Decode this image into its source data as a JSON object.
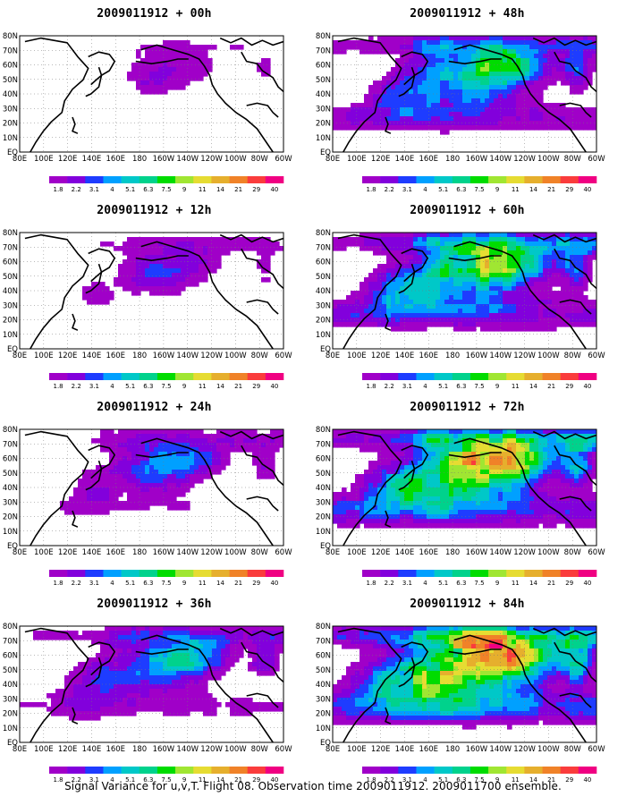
{
  "chart_data": {
    "type": "heatmap",
    "colorbar": {
      "levels": [
        "1.8",
        "2.2",
        "3.1",
        "4",
        "5.1",
        "6.3",
        "7.5",
        "9",
        "11",
        "14",
        "21",
        "29",
        "40"
      ],
      "colors": [
        "#a000c8",
        "#8200dc",
        "#1e3cff",
        "#00a0ff",
        "#00c8c8",
        "#00d28c",
        "#00dc00",
        "#a0e632",
        "#e6dc32",
        "#e6af2d",
        "#f08228",
        "#fa3c3c",
        "#f00082"
      ]
    },
    "x_ticks": [
      "80E",
      "100E",
      "120E",
      "140E",
      "160E",
      "180",
      "160W",
      "140W",
      "120W",
      "100W",
      "80W",
      "60W"
    ],
    "y_ticks": [
      "EQ",
      "10N",
      "20N",
      "30N",
      "40N",
      "50N",
      "60N",
      "70N",
      "80N"
    ],
    "xlim": [
      "80E",
      "60W"
    ],
    "ylim": [
      "EQ",
      "80N"
    ],
    "panels": [
      {
        "title": "2009011912 + 00h",
        "intensity": 0.05
      },
      {
        "title": "2009011912 + 48h",
        "intensity": 0.45
      },
      {
        "title": "2009011912 + 12h",
        "intensity": 0.12
      },
      {
        "title": "2009011912 + 60h",
        "intensity": 0.55
      },
      {
        "title": "2009011912 + 24h",
        "intensity": 0.22
      },
      {
        "title": "2009011912 + 72h",
        "intensity": 0.65
      },
      {
        "title": "2009011912 + 36h",
        "intensity": 0.32
      },
      {
        "title": "2009011912 + 84h",
        "intensity": 0.75
      }
    ]
  },
  "footer": "Signal Variance for u,v,T. Flight 08. Observation time 2009011912. 2009011700 ensemble."
}
